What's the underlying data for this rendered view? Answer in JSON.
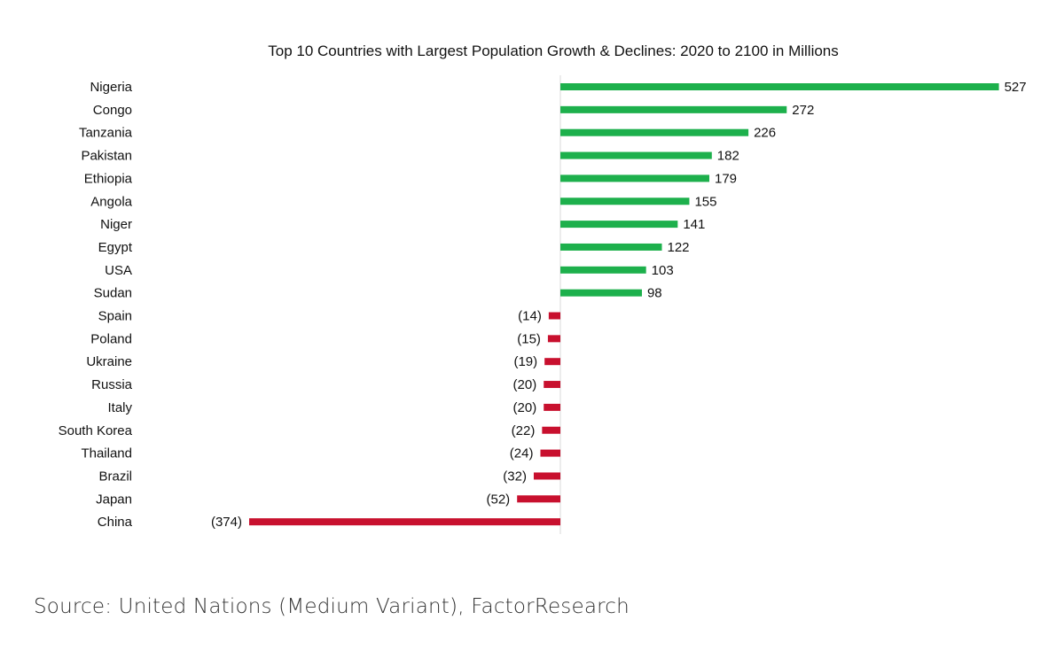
{
  "chart_data": {
    "type": "bar",
    "orientation": "horizontal",
    "title": "Top 10 Countries with Largest Population Growth & Declines: 2020 to 2100 in Millions",
    "categories": [
      "Nigeria",
      "Congo",
      "Tanzania",
      "Pakistan",
      "Ethiopia",
      "Angola",
      "Niger",
      "Egypt",
      "USA",
      "Sudan",
      "Spain",
      "Poland",
      "Ukraine",
      "Russia",
      "Italy",
      "South Korea",
      "Thailand",
      "Brazil",
      "Japan",
      "China"
    ],
    "values": [
      527,
      272,
      226,
      182,
      179,
      155,
      141,
      122,
      103,
      98,
      -14,
      -15,
      -19,
      -20,
      -20,
      -22,
      -24,
      -32,
      -52,
      -374
    ],
    "value_labels": [
      "527",
      "272",
      "226",
      "182",
      "179",
      "155",
      "141",
      "122",
      "103",
      "98",
      "(14)",
      "(15)",
      "(19)",
      "(20)",
      "(20)",
      "(22)",
      "(24)",
      "(32)",
      "(52)",
      "(374)"
    ],
    "xlim": [
      -374,
      527
    ],
    "colors": {
      "positive": "#1db04c",
      "negative": "#c8102e"
    },
    "grid": false,
    "legend": "none"
  },
  "footer": {
    "source": "Source: United Nations (Medium Variant), FactorResearch"
  }
}
